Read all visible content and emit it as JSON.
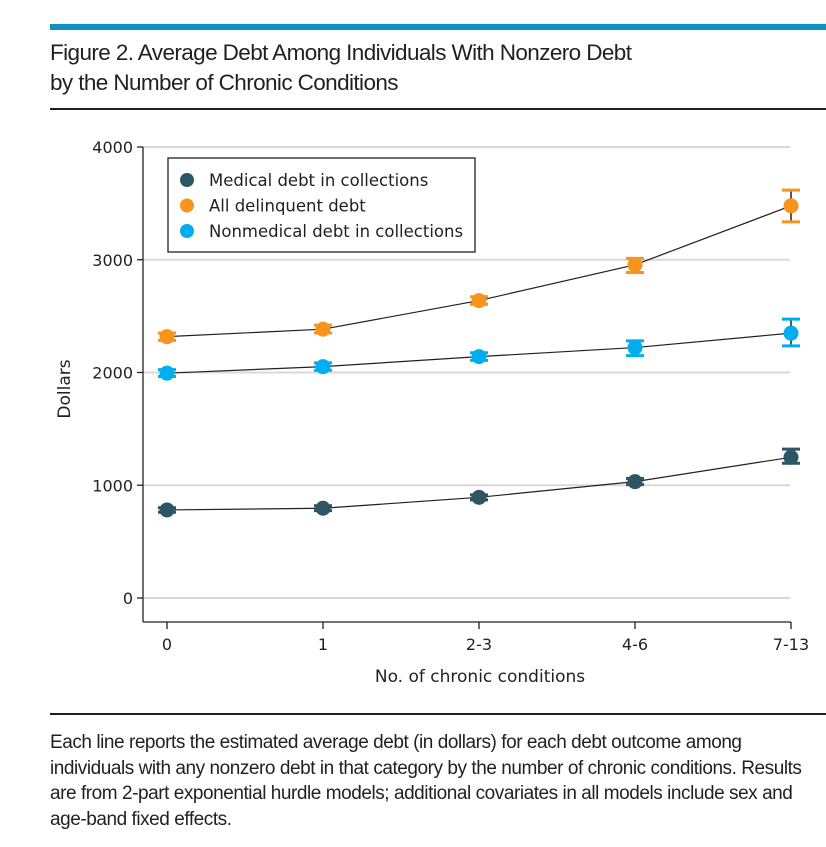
{
  "figure": {
    "title_line1": "Figure 2. Average Debt Among Individuals With Nonzero Debt",
    "title_line2": "by the Number of Chronic Conditions",
    "caption": "Each line reports the estimated average debt (in dollars) for each debt outcome among individuals with any nonzero debt in that category by the number of chronic conditions. Results are from 2-part exponential hurdle models; additional covariates in all models include sex and age-band fixed effects."
  },
  "colors": {
    "accent_rule": "#0f8fc4",
    "medical": "#2d5564",
    "all_delinquent": "#f7941d",
    "nonmedical": "#00aeef",
    "gridline": "#d9d9d9",
    "connector": "#231f20"
  },
  "chart_data": {
    "type": "line",
    "title": "Average Debt Among Individuals With Nonzero Debt by the Number of Chronic Conditions",
    "xlabel": "No. of chronic conditions",
    "ylabel": "Dollars",
    "categories": [
      "0",
      "1",
      "2-3",
      "4-6",
      "7-13"
    ],
    "ylim": [
      0,
      4000
    ],
    "yticks": [
      0,
      1000,
      2000,
      3000,
      4000
    ],
    "ytick_labels": [
      "0",
      "1000",
      "2000",
      "3000",
      "4000"
    ],
    "grid": "horizontal",
    "legend_position": "top-left",
    "series": [
      {
        "name": "Medical debt in collections",
        "color": "#2d5564",
        "values": [
          781,
          796,
          893,
          1032,
          1248
        ],
        "ci_low": [
          760,
          775,
          870,
          1005,
          1195
        ],
        "ci_high": [
          800,
          818,
          915,
          1060,
          1320
        ]
      },
      {
        "name": "All delinquent debt",
        "color": "#f7941d",
        "values": [
          2318,
          2384,
          2638,
          2955,
          3478
        ],
        "ci_low": [
          2285,
          2350,
          2605,
          2887,
          3336
        ],
        "ci_high": [
          2350,
          2420,
          2672,
          3012,
          3617
        ]
      },
      {
        "name": "Nonmedical debt in collections",
        "color": "#00aeef",
        "values": [
          1994,
          2052,
          2141,
          2221,
          2349
        ],
        "ci_low": [
          1965,
          2020,
          2108,
          2150,
          2236
        ],
        "ci_high": [
          2025,
          2085,
          2175,
          2281,
          2473
        ]
      }
    ]
  }
}
